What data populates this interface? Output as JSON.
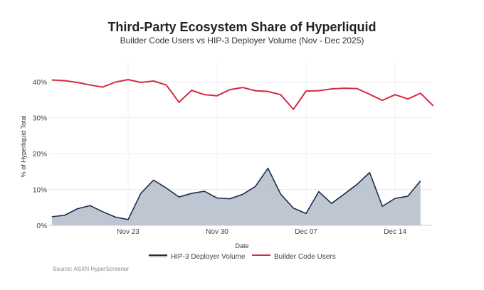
{
  "chart_data": {
    "type": "line",
    "title": "Third-Party Ecosystem Share of Hyperliquid",
    "subtitle": "Builder Code Users vs HIP-3 Deployer Volume (Nov - Dec 2025)",
    "xlabel": "Date",
    "ylabel": "% of Hyperliquid Total",
    "ylim": [
      0,
      45
    ],
    "yticks": [
      "0%",
      "10%",
      "20%",
      "30%",
      "40%"
    ],
    "xticks": [
      {
        "date": "2025-11-23",
        "label": "Nov 23"
      },
      {
        "date": "2025-11-30",
        "label": "Nov 30"
      },
      {
        "date": "2025-12-07",
        "label": "Dec 07"
      },
      {
        "date": "2025-12-14",
        "label": "Dec 14"
      }
    ],
    "grid": true,
    "legend_placement": "bottom",
    "series": [
      {
        "name": "HIP-3 Deployer Volume",
        "style": "area",
        "color": "#1c2d4a",
        "fill": "#b9c3cf",
        "x": [
          "2025-11-17",
          "2025-11-18",
          "2025-11-19",
          "2025-11-20",
          "2025-11-21",
          "2025-11-22",
          "2025-11-23",
          "2025-11-24",
          "2025-11-25",
          "2025-11-26",
          "2025-11-27",
          "2025-11-28",
          "2025-11-29",
          "2025-11-30",
          "2025-12-01",
          "2025-12-02",
          "2025-12-03",
          "2025-12-04",
          "2025-12-05",
          "2025-12-06",
          "2025-12-07",
          "2025-12-08",
          "2025-12-09",
          "2025-12-10",
          "2025-12-11",
          "2025-12-12",
          "2025-12-13",
          "2025-12-14",
          "2025-12-15",
          "2025-12-16"
        ],
        "values": [
          2.4,
          2.8,
          4.6,
          5.5,
          3.8,
          2.3,
          1.6,
          8.9,
          12.6,
          10.4,
          7.9,
          8.9,
          9.5,
          7.6,
          7.4,
          8.6,
          10.8,
          15.9,
          8.7,
          4.8,
          3.3,
          9.4,
          6.1,
          8.7,
          11.4,
          14.7,
          5.3,
          7.5,
          8.1,
          12.4
        ]
      },
      {
        "name": "Builder Code Users",
        "style": "line",
        "color": "#d62b45",
        "x": [
          "2025-11-17",
          "2025-11-18",
          "2025-11-19",
          "2025-11-20",
          "2025-11-21",
          "2025-11-22",
          "2025-11-23",
          "2025-11-24",
          "2025-11-25",
          "2025-11-26",
          "2025-11-27",
          "2025-11-28",
          "2025-11-29",
          "2025-11-30",
          "2025-12-01",
          "2025-12-02",
          "2025-12-03",
          "2025-12-04",
          "2025-12-05",
          "2025-12-06",
          "2025-12-07",
          "2025-12-08",
          "2025-12-09",
          "2025-12-10",
          "2025-12-11",
          "2025-12-12",
          "2025-12-13",
          "2025-12-14",
          "2025-12-15",
          "2025-12-16",
          "2025-12-17"
        ],
        "values": [
          40.5,
          40.3,
          39.8,
          39.1,
          38.5,
          39.9,
          40.6,
          39.8,
          40.2,
          39.1,
          34.3,
          37.6,
          36.4,
          36.1,
          37.8,
          38.4,
          37.5,
          37.3,
          36.4,
          32.3,
          37.4,
          37.5,
          38.0,
          38.2,
          38.1,
          36.5,
          34.8,
          36.4,
          35.2,
          36.8,
          33.3
        ]
      }
    ]
  },
  "source": "Source: ASXN HyperScreener"
}
